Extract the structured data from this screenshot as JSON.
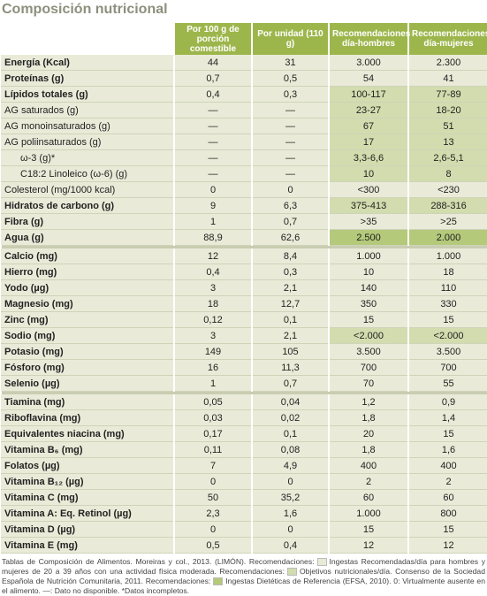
{
  "title": "Composición nutricional",
  "table": {
    "header": [
      "Por 100 g de porción comestible",
      "Por unidad (110 g)",
      "Recomendaciones día-hombres",
      "Recomendaciones día-mujeres"
    ],
    "sections": [
      [
        [
          "Energía (Kcal)",
          "44",
          "31",
          "3.000",
          "2.300"
        ],
        [
          "Proteínas (g)",
          "0,7",
          "0,5",
          "54",
          "41"
        ],
        [
          "Lípidos totales (g)",
          "0,4",
          "0,3",
          "100-117",
          "77-89"
        ],
        [
          "AG saturados (g)",
          "—",
          "—",
          "23-27",
          "18-20"
        ],
        [
          "AG monoinsaturados (g)",
          "—",
          "—",
          "67",
          "51"
        ],
        [
          "AG poliinsaturados (g)",
          "—",
          "—",
          "17",
          "13"
        ],
        [
          "ω-3 (g)*",
          "—",
          "—",
          "3,3-6,6",
          "2,6-5,1"
        ],
        [
          "C18:2 Linoleico (ω-6) (g)",
          "—",
          "—",
          "10",
          "8"
        ],
        [
          "Colesterol (mg/1000 kcal)",
          "0",
          "0",
          "<300",
          "<230"
        ],
        [
          "Hidratos de carbono (g)",
          "9",
          "6,3",
          "375-413",
          "288-316"
        ],
        [
          "Fibra (g)",
          "1",
          "0,7",
          ">35",
          ">25"
        ],
        [
          "Agua (g)",
          "88,9",
          "62,6",
          "2.500",
          "2.000"
        ]
      ],
      [
        [
          "Calcio (mg)",
          "12",
          "8,4",
          "1.000",
          "1.000"
        ],
        [
          "Hierro (mg)",
          "0,4",
          "0,3",
          "10",
          "18"
        ],
        [
          "Yodo (µg)",
          "3",
          "2,1",
          "140",
          "110"
        ],
        [
          "Magnesio (mg)",
          "18",
          "12,7",
          "350",
          "330"
        ],
        [
          "Zinc (mg)",
          "0,12",
          "0,1",
          "15",
          "15"
        ],
        [
          "Sodio (mg)",
          "3",
          "2,1",
          "<2.000",
          "<2.000"
        ],
        [
          "Potasio (mg)",
          "149",
          "105",
          "3.500",
          "3.500"
        ],
        [
          "Fósforo (mg)",
          "16",
          "11,3",
          "700",
          "700"
        ],
        [
          "Selenio (µg)",
          "1",
          "0,7",
          "70",
          "55"
        ]
      ],
      [
        [
          "Tiamina (mg)",
          "0,05",
          "0,04",
          "1,2",
          "0,9"
        ],
        [
          "Riboflavina (mg)",
          "0,03",
          "0,02",
          "1,8",
          "1,4"
        ],
        [
          "Equivalentes niacina (mg)",
          "0,17",
          "0,1",
          "20",
          "15"
        ],
        [
          "Vitamina B₆ (mg)",
          "0,11",
          "0,08",
          "1,8",
          "1,6"
        ],
        [
          "Folatos (µg)",
          "7",
          "4,9",
          "400",
          "400"
        ],
        [
          "Vitamina B₁₂ (µg)",
          "0",
          "0",
          "2",
          "2"
        ],
        [
          "Vitamina C (mg)",
          "50",
          "35,2",
          "60",
          "60"
        ],
        [
          "Vitamina A: Eq. Retinol (µg)",
          "2,3",
          "1,6",
          "1.000",
          "800"
        ],
        [
          "Vitamina D (µg)",
          "0",
          "0",
          "15",
          "15"
        ],
        [
          "Vitamina E (mg)",
          "0,5",
          "0,4",
          "12",
          "12"
        ]
      ]
    ]
  },
  "footnote": [
    "Tablas de Composición de Alimentos. Moreiras y col., 2013. (LIMÓN). Recomendaciones:",
    "Ingestas Recomendadas/día para hombres y mujeres de 20 a 39 años con una actividad física moderada. Recomendaciones:",
    "Objetivos nutricionales/día. Consenso de la Sociedad Española de Nutrición Comunitaria, 2011. Recomendaciones:",
    "Ingestas Dietéticas de Referencia (EFSA, 2010). 0: Virtualmente ausente en el alimento. —: Dato no disponible. *Datos incompletos."
  ]
}
